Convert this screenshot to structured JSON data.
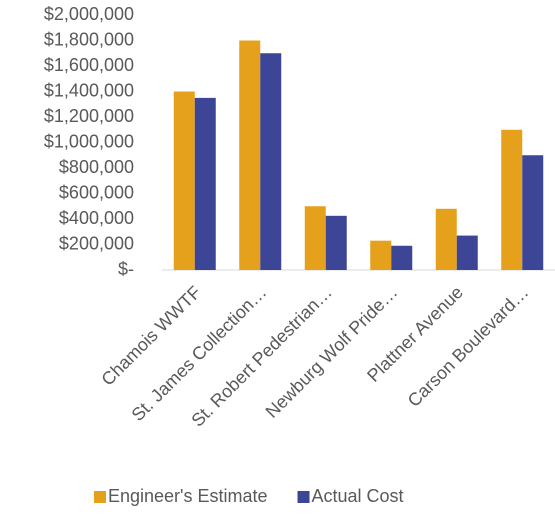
{
  "chart_data": {
    "type": "bar",
    "categories": [
      "Chamois WWTF",
      "St. James Collection…",
      "St. Robert Pedestrian…",
      "Newburg Wolf Pride…",
      "Plattner Avenue",
      "Carson Boulevard…"
    ],
    "series": [
      {
        "name": "Engineer's Estimate",
        "color": "#e5a11b",
        "values": [
          1400000,
          1800000,
          500000,
          230000,
          480000,
          1100000
        ]
      },
      {
        "name": "Actual Cost",
        "color": "#3c4596",
        "values": [
          1350000,
          1700000,
          425000,
          190000,
          270000,
          900000
        ]
      }
    ],
    "ylim": [
      0,
      2000000
    ],
    "yticks": [
      {
        "value": 0,
        "label": "$-"
      },
      {
        "value": 200000,
        "label": "$200,000"
      },
      {
        "value": 400000,
        "label": "$400,000"
      },
      {
        "value": 600000,
        "label": "$600,000"
      },
      {
        "value": 800000,
        "label": "$800,000"
      },
      {
        "value": 1000000,
        "label": "$1,000,000"
      },
      {
        "value": 1200000,
        "label": "$1,200,000"
      },
      {
        "value": 1400000,
        "label": "$1,400,000"
      },
      {
        "value": 1600000,
        "label": "$1,600,000"
      },
      {
        "value": 1800000,
        "label": "$1,800,000"
      },
      {
        "value": 2000000,
        "label": "$2,000,000"
      }
    ],
    "grid": false,
    "legend": "bottom"
  }
}
